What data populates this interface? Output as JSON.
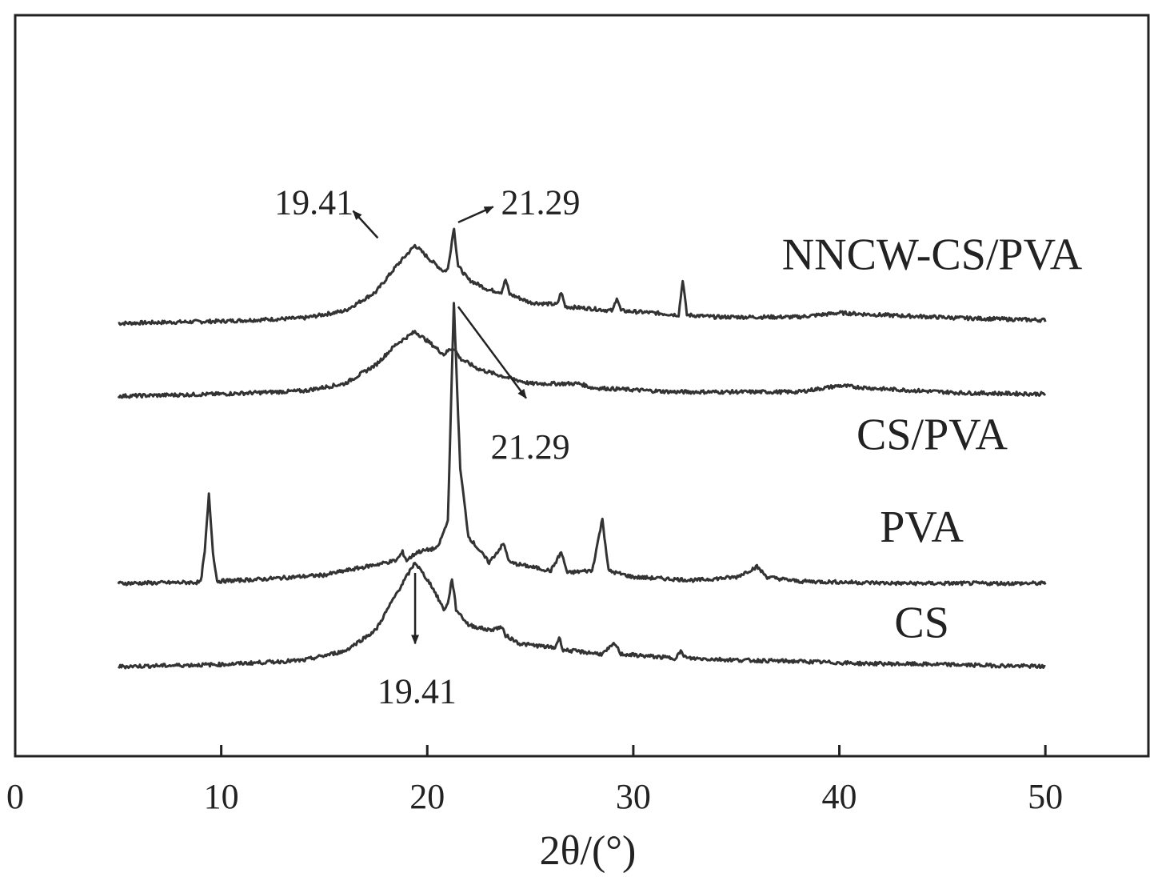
{
  "chart_data": {
    "type": "line",
    "xlabel": "2θ/(°)",
    "xlim": [
      0,
      55
    ],
    "x_ticks": [
      "0",
      "10",
      "20",
      "30",
      "40",
      "50"
    ],
    "x_tick_values": [
      0,
      10,
      20,
      30,
      40,
      50
    ],
    "ylabel": "",
    "y_ticks_shown": false,
    "grid": false,
    "legend": "none",
    "line_color": "#333333",
    "series": [
      {
        "name": "NNCW-CS/PVA",
        "offset": 3.3,
        "points": [
          [
            5,
            0.0
          ],
          [
            10,
            0.02
          ],
          [
            14,
            0.05
          ],
          [
            16,
            0.12
          ],
          [
            17.5,
            0.3
          ],
          [
            18.5,
            0.55
          ],
          [
            19.41,
            0.75
          ],
          [
            20.2,
            0.6
          ],
          [
            20.8,
            0.5
          ],
          [
            21.0,
            0.52
          ],
          [
            21.29,
            0.92
          ],
          [
            21.5,
            0.55
          ],
          [
            22,
            0.42
          ],
          [
            23,
            0.32
          ],
          [
            23.6,
            0.3
          ],
          [
            23.8,
            0.42
          ],
          [
            24,
            0.28
          ],
          [
            25,
            0.2
          ],
          [
            26.3,
            0.18
          ],
          [
            26.5,
            0.3
          ],
          [
            26.7,
            0.16
          ],
          [
            28,
            0.14
          ],
          [
            29,
            0.12
          ],
          [
            29.2,
            0.25
          ],
          [
            29.4,
            0.12
          ],
          [
            31,
            0.1
          ],
          [
            32.2,
            0.08
          ],
          [
            32.4,
            0.42
          ],
          [
            32.6,
            0.08
          ],
          [
            34,
            0.06
          ],
          [
            38,
            0.06
          ],
          [
            40,
            0.1
          ],
          [
            42,
            0.08
          ],
          [
            46,
            0.05
          ],
          [
            50,
            0.03
          ]
        ]
      },
      {
        "name": "CS/PVA",
        "offset": 2.6,
        "points": [
          [
            5,
            0.0
          ],
          [
            10,
            0.02
          ],
          [
            14,
            0.05
          ],
          [
            16,
            0.12
          ],
          [
            17.5,
            0.3
          ],
          [
            18.5,
            0.5
          ],
          [
            19.41,
            0.62
          ],
          [
            20.2,
            0.5
          ],
          [
            20.8,
            0.4
          ],
          [
            21.1,
            0.45
          ],
          [
            21.3,
            0.46
          ],
          [
            21.6,
            0.36
          ],
          [
            22.5,
            0.26
          ],
          [
            23.5,
            0.2
          ],
          [
            25,
            0.12
          ],
          [
            26.4,
            0.12
          ],
          [
            27.4,
            0.12
          ],
          [
            28,
            0.08
          ],
          [
            32,
            0.04
          ],
          [
            38,
            0.04
          ],
          [
            40,
            0.1
          ],
          [
            42,
            0.07
          ],
          [
            46,
            0.03
          ],
          [
            50,
            0.02
          ]
        ]
      },
      {
        "name": "PVA",
        "offset": 0.8,
        "points": [
          [
            5,
            0.0
          ],
          [
            9.0,
            0.01
          ],
          [
            9.2,
            0.3
          ],
          [
            9.4,
            0.85
          ],
          [
            9.6,
            0.3
          ],
          [
            9.8,
            0.02
          ],
          [
            12,
            0.04
          ],
          [
            15,
            0.08
          ],
          [
            17,
            0.16
          ],
          [
            18.5,
            0.22
          ],
          [
            18.8,
            0.3
          ],
          [
            19,
            0.22
          ],
          [
            19.5,
            0.3
          ],
          [
            20.5,
            0.34
          ],
          [
            21,
            0.6
          ],
          [
            21.29,
            2.7
          ],
          [
            21.6,
            1.1
          ],
          [
            22,
            0.45
          ],
          [
            23,
            0.2
          ],
          [
            23.7,
            0.38
          ],
          [
            24,
            0.2
          ],
          [
            26,
            0.12
          ],
          [
            26.5,
            0.3
          ],
          [
            26.8,
            0.1
          ],
          [
            27.7,
            0.12
          ],
          [
            28,
            0.12
          ],
          [
            28.5,
            0.62
          ],
          [
            28.8,
            0.12
          ],
          [
            30,
            0.06
          ],
          [
            33,
            0.03
          ],
          [
            35,
            0.06
          ],
          [
            36,
            0.16
          ],
          [
            36.5,
            0.06
          ],
          [
            38,
            0.02
          ],
          [
            43,
            0.0
          ],
          [
            50,
            0.0
          ]
        ]
      },
      {
        "name": "CS",
        "offset": 0.0,
        "points": [
          [
            5,
            0.0
          ],
          [
            10,
            0.02
          ],
          [
            14,
            0.06
          ],
          [
            16,
            0.15
          ],
          [
            17.5,
            0.35
          ],
          [
            18.5,
            0.7
          ],
          [
            19.41,
            1.0
          ],
          [
            20.2,
            0.78
          ],
          [
            20.8,
            0.55
          ],
          [
            21.0,
            0.6
          ],
          [
            21.2,
            0.85
          ],
          [
            21.4,
            0.55
          ],
          [
            22,
            0.4
          ],
          [
            23,
            0.35
          ],
          [
            23.6,
            0.38
          ],
          [
            23.8,
            0.3
          ],
          [
            24.5,
            0.22
          ],
          [
            26.2,
            0.18
          ],
          [
            26.4,
            0.28
          ],
          [
            26.6,
            0.16
          ],
          [
            28.5,
            0.12
          ],
          [
            29.1,
            0.22
          ],
          [
            29.4,
            0.12
          ],
          [
            32,
            0.08
          ],
          [
            32.3,
            0.14
          ],
          [
            32.6,
            0.08
          ],
          [
            35.5,
            0.06
          ],
          [
            38,
            0.05
          ],
          [
            41,
            0.03
          ],
          [
            45,
            0.02
          ],
          [
            50,
            0.0
          ]
        ]
      }
    ],
    "series_labels": [
      {
        "text": "NNCW-CS/PVA",
        "x": 44.5,
        "y": 3.82
      },
      {
        "text": "CS/PVA",
        "x": 44.5,
        "y": 2.09
      },
      {
        "text": "PVA",
        "x": 44.0,
        "y": 1.2
      },
      {
        "text": "CS",
        "x": 44.0,
        "y": 0.28
      }
    ],
    "annotations": [
      {
        "text": "19.41",
        "x": 14.5,
        "y": 4.35,
        "arrow_from": [
          17.6,
          4.12
        ],
        "arrow_to": [
          16.4,
          4.38
        ]
      },
      {
        "text": "21.29",
        "x": 25.5,
        "y": 4.35,
        "arrow_from": [
          21.5,
          4.27
        ],
        "arrow_to": [
          23.2,
          4.42
        ]
      },
      {
        "text": "21.29",
        "x": 25.0,
        "y": 2.0,
        "arrow_from": [
          21.5,
          3.46
        ],
        "arrow_to": [
          24.8,
          2.58
        ]
      },
      {
        "text": "19.41",
        "x": 19.5,
        "y": -0.35,
        "arrow_from": [
          19.41,
          0.9
        ],
        "arrow_to": [
          19.41,
          0.22
        ]
      }
    ]
  }
}
